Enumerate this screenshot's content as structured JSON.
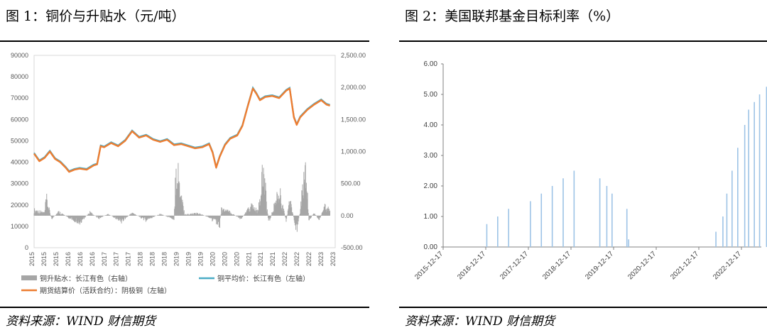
{
  "figures": [
    {
      "title": "图 1：铜价与升贴水（元/吨）",
      "source": "资料来源：WIND  财信期货"
    },
    {
      "title": "图 2：美国联邦基金目标利率（%）",
      "source": "资料来源：WIND  财信期货"
    }
  ],
  "chart_data": [
    {
      "type": "line",
      "title": "",
      "y_left": {
        "ticks": [
          "0",
          "10000",
          "20000",
          "30000",
          "40000",
          "50000",
          "60000",
          "70000",
          "80000",
          "90000"
        ],
        "lim": [
          0,
          90000
        ]
      },
      "y_right": {
        "ticks": [
          "-500.00",
          "0.00",
          "500.00",
          "1,000.00",
          "1,500.00",
          "2,000.00",
          "2,500.00"
        ],
        "lim": [
          -500,
          2500
        ]
      },
      "x_labels": [
        "2015",
        "2015",
        "2015",
        "2016",
        "2016",
        "2016",
        "2017",
        "2017",
        "2017",
        "2018",
        "2018",
        "2018",
        "2019",
        "2019",
        "2019",
        "2020",
        "2020",
        "2020",
        "2021",
        "2021",
        "2021",
        "2022",
        "2022",
        "2022",
        "2023",
        "2023"
      ],
      "legend": [
        {
          "name": "铜升贴水：长江有色（右轴）",
          "color": "#a6a6a6"
        },
        {
          "name": "铜平均价：长江有色（左轴）",
          "color": "#4bacc6"
        },
        {
          "name": "期货结算价（活跃合约）：阴极铜（左轴）",
          "color": "#ed7d31"
        }
      ],
      "price_series": {
        "x": [
          2015.0,
          2015.15,
          2015.3,
          2015.45,
          2015.6,
          2015.75,
          2015.9,
          2016.0,
          2016.15,
          2016.3,
          2016.5,
          2016.7,
          2016.8,
          2016.9,
          2017.0,
          2017.2,
          2017.4,
          2017.6,
          2017.8,
          2017.9,
          2018.0,
          2018.2,
          2018.4,
          2018.6,
          2018.8,
          2019.0,
          2019.2,
          2019.4,
          2019.6,
          2019.8,
          2020.0,
          2020.1,
          2020.2,
          2020.3,
          2020.45,
          2020.6,
          2020.8,
          2020.95,
          2021.1,
          2021.25,
          2021.35,
          2021.45,
          2021.6,
          2021.8,
          2022.0,
          2022.2,
          2022.3,
          2022.42,
          2022.5,
          2022.6,
          2022.8,
          2023.0,
          2023.2,
          2023.35,
          2023.45
        ],
        "y": [
          44000,
          40500,
          42000,
          45000,
          41500,
          40000,
          37500,
          35500,
          36500,
          37000,
          36500,
          38500,
          39000,
          47500,
          47000,
          49000,
          47500,
          50000,
          54500,
          53000,
          51500,
          52500,
          50500,
          49500,
          50500,
          48000,
          48500,
          47500,
          46500,
          47000,
          48500,
          44500,
          37500,
          42500,
          48000,
          51000,
          52500,
          57000,
          66000,
          74500,
          72000,
          69000,
          70500,
          71000,
          70000,
          73500,
          74500,
          61000,
          57500,
          61000,
          64500,
          67000,
          69000,
          67000,
          66500
        ]
      },
      "spread_series": {
        "x": [
          2015.0,
          2015.3,
          2015.35,
          2015.5,
          2015.7,
          2016.0,
          2016.3,
          2016.6,
          2016.85,
          2017.1,
          2017.5,
          2017.8,
          2018.2,
          2018.6,
          2019.0,
          2019.05,
          2019.3,
          2019.7,
          2020.0,
          2020.3,
          2020.35,
          2020.6,
          2020.9,
          2021.2,
          2021.4,
          2021.55,
          2021.7,
          2022.0,
          2022.2,
          2022.3,
          2022.5,
          2022.6,
          2022.75,
          2022.85,
          2023.0,
          2023.15,
          2023.3,
          2023.45
        ],
        "y": [
          100,
          50,
          300,
          -60,
          70,
          -40,
          -120,
          60,
          -50,
          30,
          -100,
          50,
          -80,
          30,
          -60,
          1000,
          20,
          40,
          -30,
          -180,
          120,
          60,
          -60,
          170,
          70,
          800,
          -140,
          450,
          -100,
          280,
          -250,
          100,
          900,
          -80,
          50,
          -80,
          200,
          80
        ]
      }
    },
    {
      "type": "bar",
      "title": "",
      "ylim": [
        0,
        6
      ],
      "y_ticks": [
        "0.00",
        "1.00",
        "2.00",
        "3.00",
        "4.00",
        "5.00",
        "6.00"
      ],
      "x_labels": [
        "2015-12-17",
        "2016-12-17",
        "2017-12-17",
        "2018-12-17",
        "2019-12-17",
        "2020-12-17",
        "2021-12-17",
        "2022-12-17"
      ],
      "color": "#9dc3e6",
      "x": [
        2016.96,
        2017.21,
        2017.46,
        2017.96,
        2018.21,
        2018.46,
        2018.71,
        2018.96,
        2019.55,
        2019.71,
        2019.83,
        2020.17,
        2020.21,
        2022.21,
        2022.37,
        2022.46,
        2022.58,
        2022.71,
        2022.87,
        2022.96,
        2023.09,
        2023.21,
        2023.37,
        2023.55
      ],
      "values": [
        0.75,
        1.0,
        1.25,
        1.5,
        1.75,
        2.0,
        2.25,
        2.5,
        2.25,
        2.0,
        1.75,
        1.25,
        0.25,
        0.5,
        1.0,
        1.75,
        2.5,
        3.25,
        4.0,
        4.5,
        4.75,
        5.0,
        5.25,
        5.5
      ]
    }
  ]
}
